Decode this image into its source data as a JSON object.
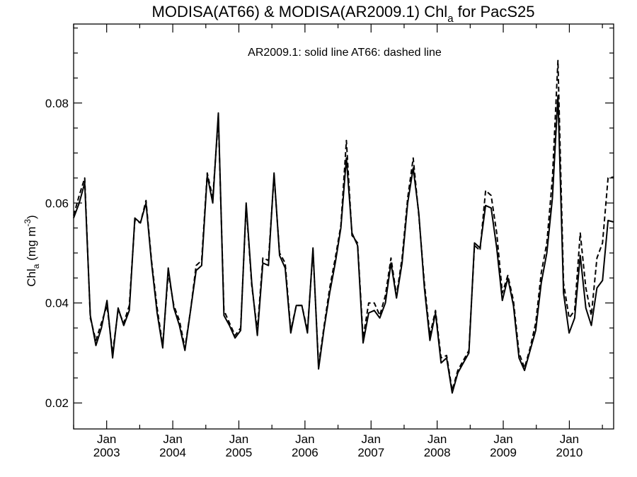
{
  "chart_data": {
    "type": "line",
    "title": {
      "prefix": "MODISA(AT66) & MODISA(AR2009.1)  Chl",
      "subscript": "a",
      "suffix": " for PacS25"
    },
    "annotation": "AR2009.1: solid line   AT66: dashed line",
    "ylabel": {
      "main": "Chl",
      "subscript": "a",
      "unit_open": " (mg m",
      "unit_sup": "-3",
      "unit_close": ")"
    },
    "ylim": [
      0.0148,
      0.0958
    ],
    "yticks": [
      0.02,
      0.04,
      0.06,
      0.08
    ],
    "ytick_labels": [
      "0.02",
      "0.04",
      "0.06",
      "0.08"
    ],
    "x_start": "2002.50",
    "x_end": "2010.67",
    "x_tick_years": [
      "2003",
      "2004",
      "2005",
      "2006",
      "2007",
      "2008",
      "2009",
      "2010"
    ],
    "x_tick_month": "Jan",
    "x_units": "decimal year (monthly samples, Jul 2002 – Sep 2010)",
    "grid": false,
    "series": [
      {
        "name": "AR2009.1",
        "style": "solid",
        "color": "#000000",
        "values": [
          0.057,
          0.06,
          0.064,
          0.0375,
          0.0315,
          0.035,
          0.0405,
          0.029,
          0.039,
          0.0355,
          0.0385,
          0.057,
          0.056,
          0.06,
          0.048,
          0.038,
          0.031,
          0.047,
          0.039,
          0.0355,
          0.0305,
          0.0385,
          0.0465,
          0.0475,
          0.0655,
          0.06,
          0.078,
          0.0375,
          0.0355,
          0.033,
          0.0345,
          0.06,
          0.044,
          0.0335,
          0.048,
          0.0475,
          0.066,
          0.0495,
          0.047,
          0.034,
          0.0395,
          0.0395,
          0.034,
          0.051,
          0.0268,
          0.035,
          0.042,
          0.048,
          0.055,
          0.069,
          0.054,
          0.0515,
          0.032,
          0.038,
          0.0385,
          0.037,
          0.04,
          0.048,
          0.041,
          0.048,
          0.06,
          0.067,
          0.058,
          0.043,
          0.0325,
          0.038,
          0.028,
          0.029,
          0.022,
          0.026,
          0.028,
          0.03,
          0.052,
          0.051,
          0.0595,
          0.059,
          0.051,
          0.0405,
          0.045,
          0.0395,
          0.029,
          0.0265,
          0.0305,
          0.0345,
          0.044,
          0.05,
          0.061,
          0.0815,
          0.042,
          0.034,
          0.037,
          0.0495,
          0.039,
          0.0355,
          0.043,
          0.0445,
          0.0565,
          0.0562
        ]
      },
      {
        "name": "AT66",
        "style": "dashed",
        "color": "#000000",
        "values": [
          0.0575,
          0.0615,
          0.065,
          0.037,
          0.0325,
          0.036,
          0.0395,
          0.03,
          0.0385,
          0.036,
          0.0395,
          0.0565,
          0.056,
          0.0605,
          0.0485,
          0.039,
          0.0315,
          0.046,
          0.0395,
          0.0365,
          0.031,
          0.0385,
          0.0475,
          0.0485,
          0.066,
          0.061,
          0.077,
          0.0385,
          0.036,
          0.0335,
          0.035,
          0.0595,
          0.0435,
          0.0345,
          0.049,
          0.0485,
          0.0655,
          0.05,
          0.048,
          0.0345,
          0.0395,
          0.0395,
          0.0345,
          0.0505,
          0.0275,
          0.0355,
          0.043,
          0.049,
          0.0555,
          0.0725,
          0.0535,
          0.052,
          0.033,
          0.04,
          0.04,
          0.0375,
          0.0415,
          0.049,
          0.0415,
          0.049,
          0.061,
          0.069,
          0.0575,
          0.044,
          0.0335,
          0.0385,
          0.029,
          0.0295,
          0.0225,
          0.0265,
          0.0285,
          0.0305,
          0.0515,
          0.0505,
          0.0625,
          0.0615,
          0.054,
          0.042,
          0.0455,
          0.0405,
          0.03,
          0.027,
          0.031,
          0.036,
          0.046,
          0.052,
          0.065,
          0.0885,
          0.044,
          0.037,
          0.0385,
          0.054,
          0.043,
          0.0375,
          0.049,
          0.052,
          0.065,
          0.0652
        ]
      }
    ]
  }
}
